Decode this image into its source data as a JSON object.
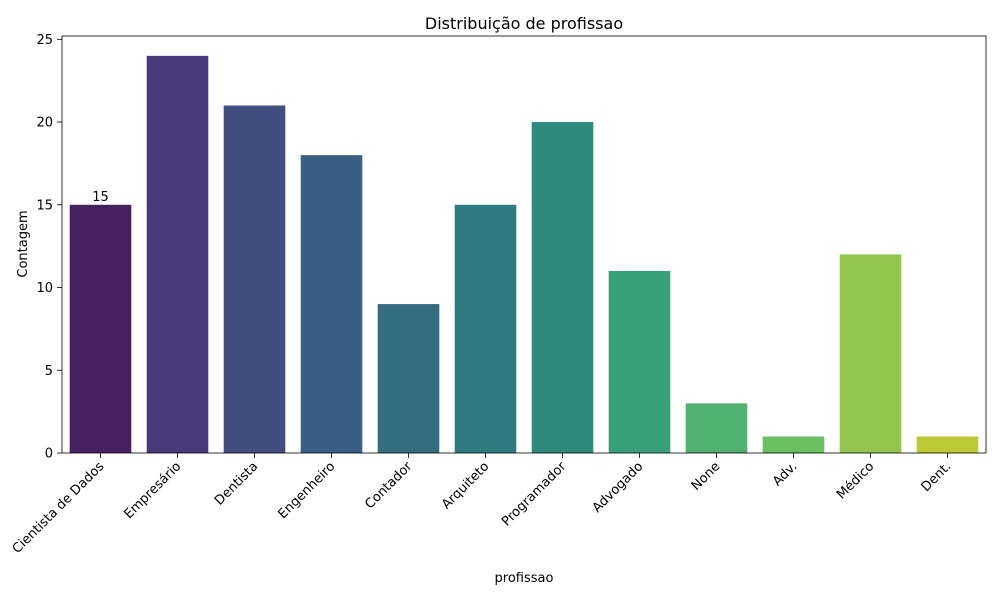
{
  "chart_data": {
    "type": "bar",
    "title": "Distribuição de profissao",
    "xlabel": "profissao",
    "ylabel": "Contagem",
    "categories": [
      "Cientista de Dados",
      "Empresário",
      "Dentista",
      "Engenheiro",
      "Contador",
      "Arquiteto",
      "Programador",
      "Advogado",
      "None",
      "Adv.",
      "Médico",
      "Dent."
    ],
    "values": [
      15,
      24,
      21,
      18,
      9,
      15,
      20,
      11,
      3,
      1,
      12,
      1
    ],
    "colors": [
      "#46215d",
      "#483a7a",
      "#424d80",
      "#3b5f82",
      "#366c80",
      "#2d7a7f",
      "#2b8a7b",
      "#37a07a",
      "#51b170",
      "#6bc162",
      "#94c64d",
      "#bdc935"
    ],
    "ylim": [
      0,
      25.2
    ],
    "yticks": [
      0,
      5,
      10,
      15,
      20,
      25
    ],
    "grid": false,
    "legend": "none",
    "data_labels": [
      {
        "index": 0,
        "text": "15"
      }
    ]
  }
}
